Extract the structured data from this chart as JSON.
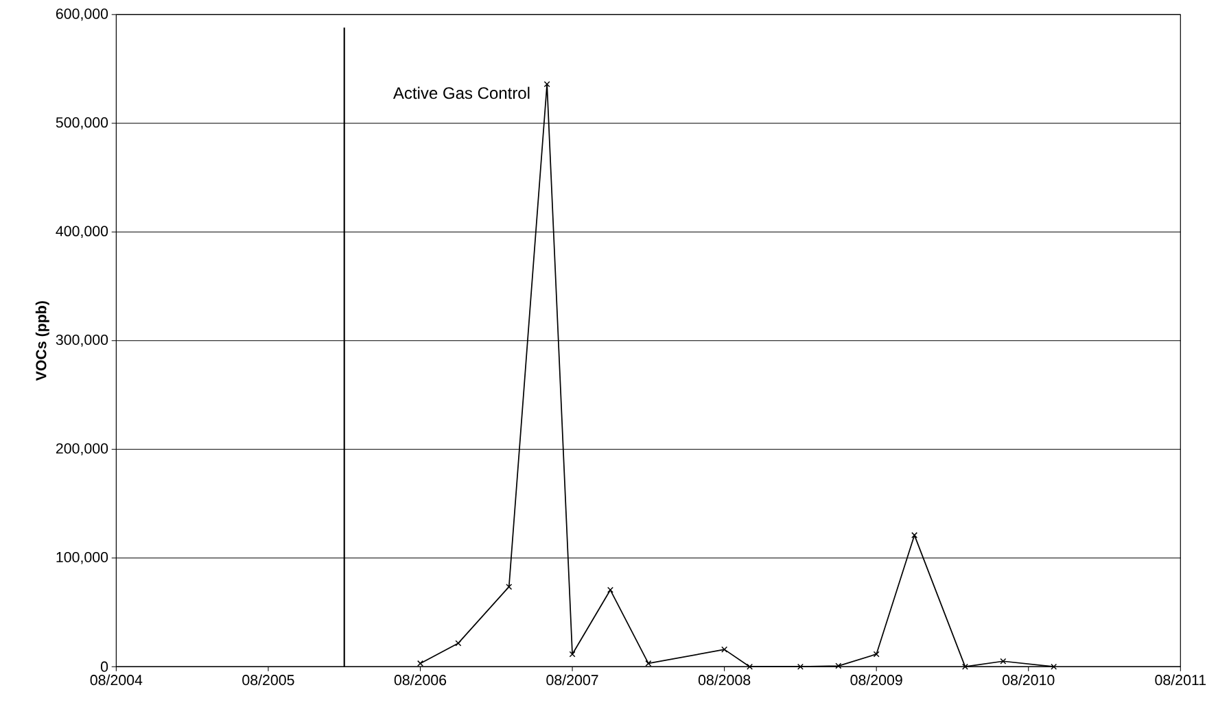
{
  "chart_data": {
    "type": "line",
    "ylabel": "VOCs (ppb)",
    "x": [
      "2006-08",
      "2006-11",
      "2007-03",
      "2007-06",
      "2007-08",
      "2007-11",
      "2008-02",
      "2008-08",
      "2008-10",
      "2009-02",
      "2009-05",
      "2009-08",
      "2009-11",
      "2010-03",
      "2010-06",
      "2010-10"
    ],
    "series": [
      {
        "color": "#000000",
        "values": [
          3000,
          21600,
          73500,
          536000,
          11500,
          70600,
          3000,
          15800,
          0,
          0,
          700,
          11500,
          121000,
          0,
          5000,
          0
        ]
      }
    ],
    "xlim": [
      "2004-08",
      "2011-08"
    ],
    "xticks": [
      {
        "value": "2004-08",
        "label": "08/2004"
      },
      {
        "value": "2005-08",
        "label": "08/2005"
      },
      {
        "value": "2006-08",
        "label": "08/2006"
      },
      {
        "value": "2007-08",
        "label": "08/2007"
      },
      {
        "value": "2008-08",
        "label": "08/2008"
      },
      {
        "value": "2009-08",
        "label": "08/2009"
      },
      {
        "value": "2010-08",
        "label": "08/2010"
      },
      {
        "value": "2011-08",
        "label": "08/2011"
      }
    ],
    "ylim": [
      0,
      600000
    ],
    "yticks": [
      0,
      {
        "value": 100000,
        "label": "100,000"
      },
      {
        "value": 200000,
        "label": "200,000"
      },
      {
        "value": 300000,
        "label": "300,000"
      },
      {
        "value": 400000,
        "label": "400,000"
      },
      {
        "value": 500000,
        "label": "500,000"
      },
      {
        "value": 600000,
        "label": "600,000"
      }
    ],
    "ref_lines": [
      {
        "axis": "x",
        "value": "2006-02",
        "label": "Active Gas Control",
        "color": "#000000"
      }
    ],
    "grid": "y",
    "marker": "cross",
    "line_style": "solid"
  }
}
